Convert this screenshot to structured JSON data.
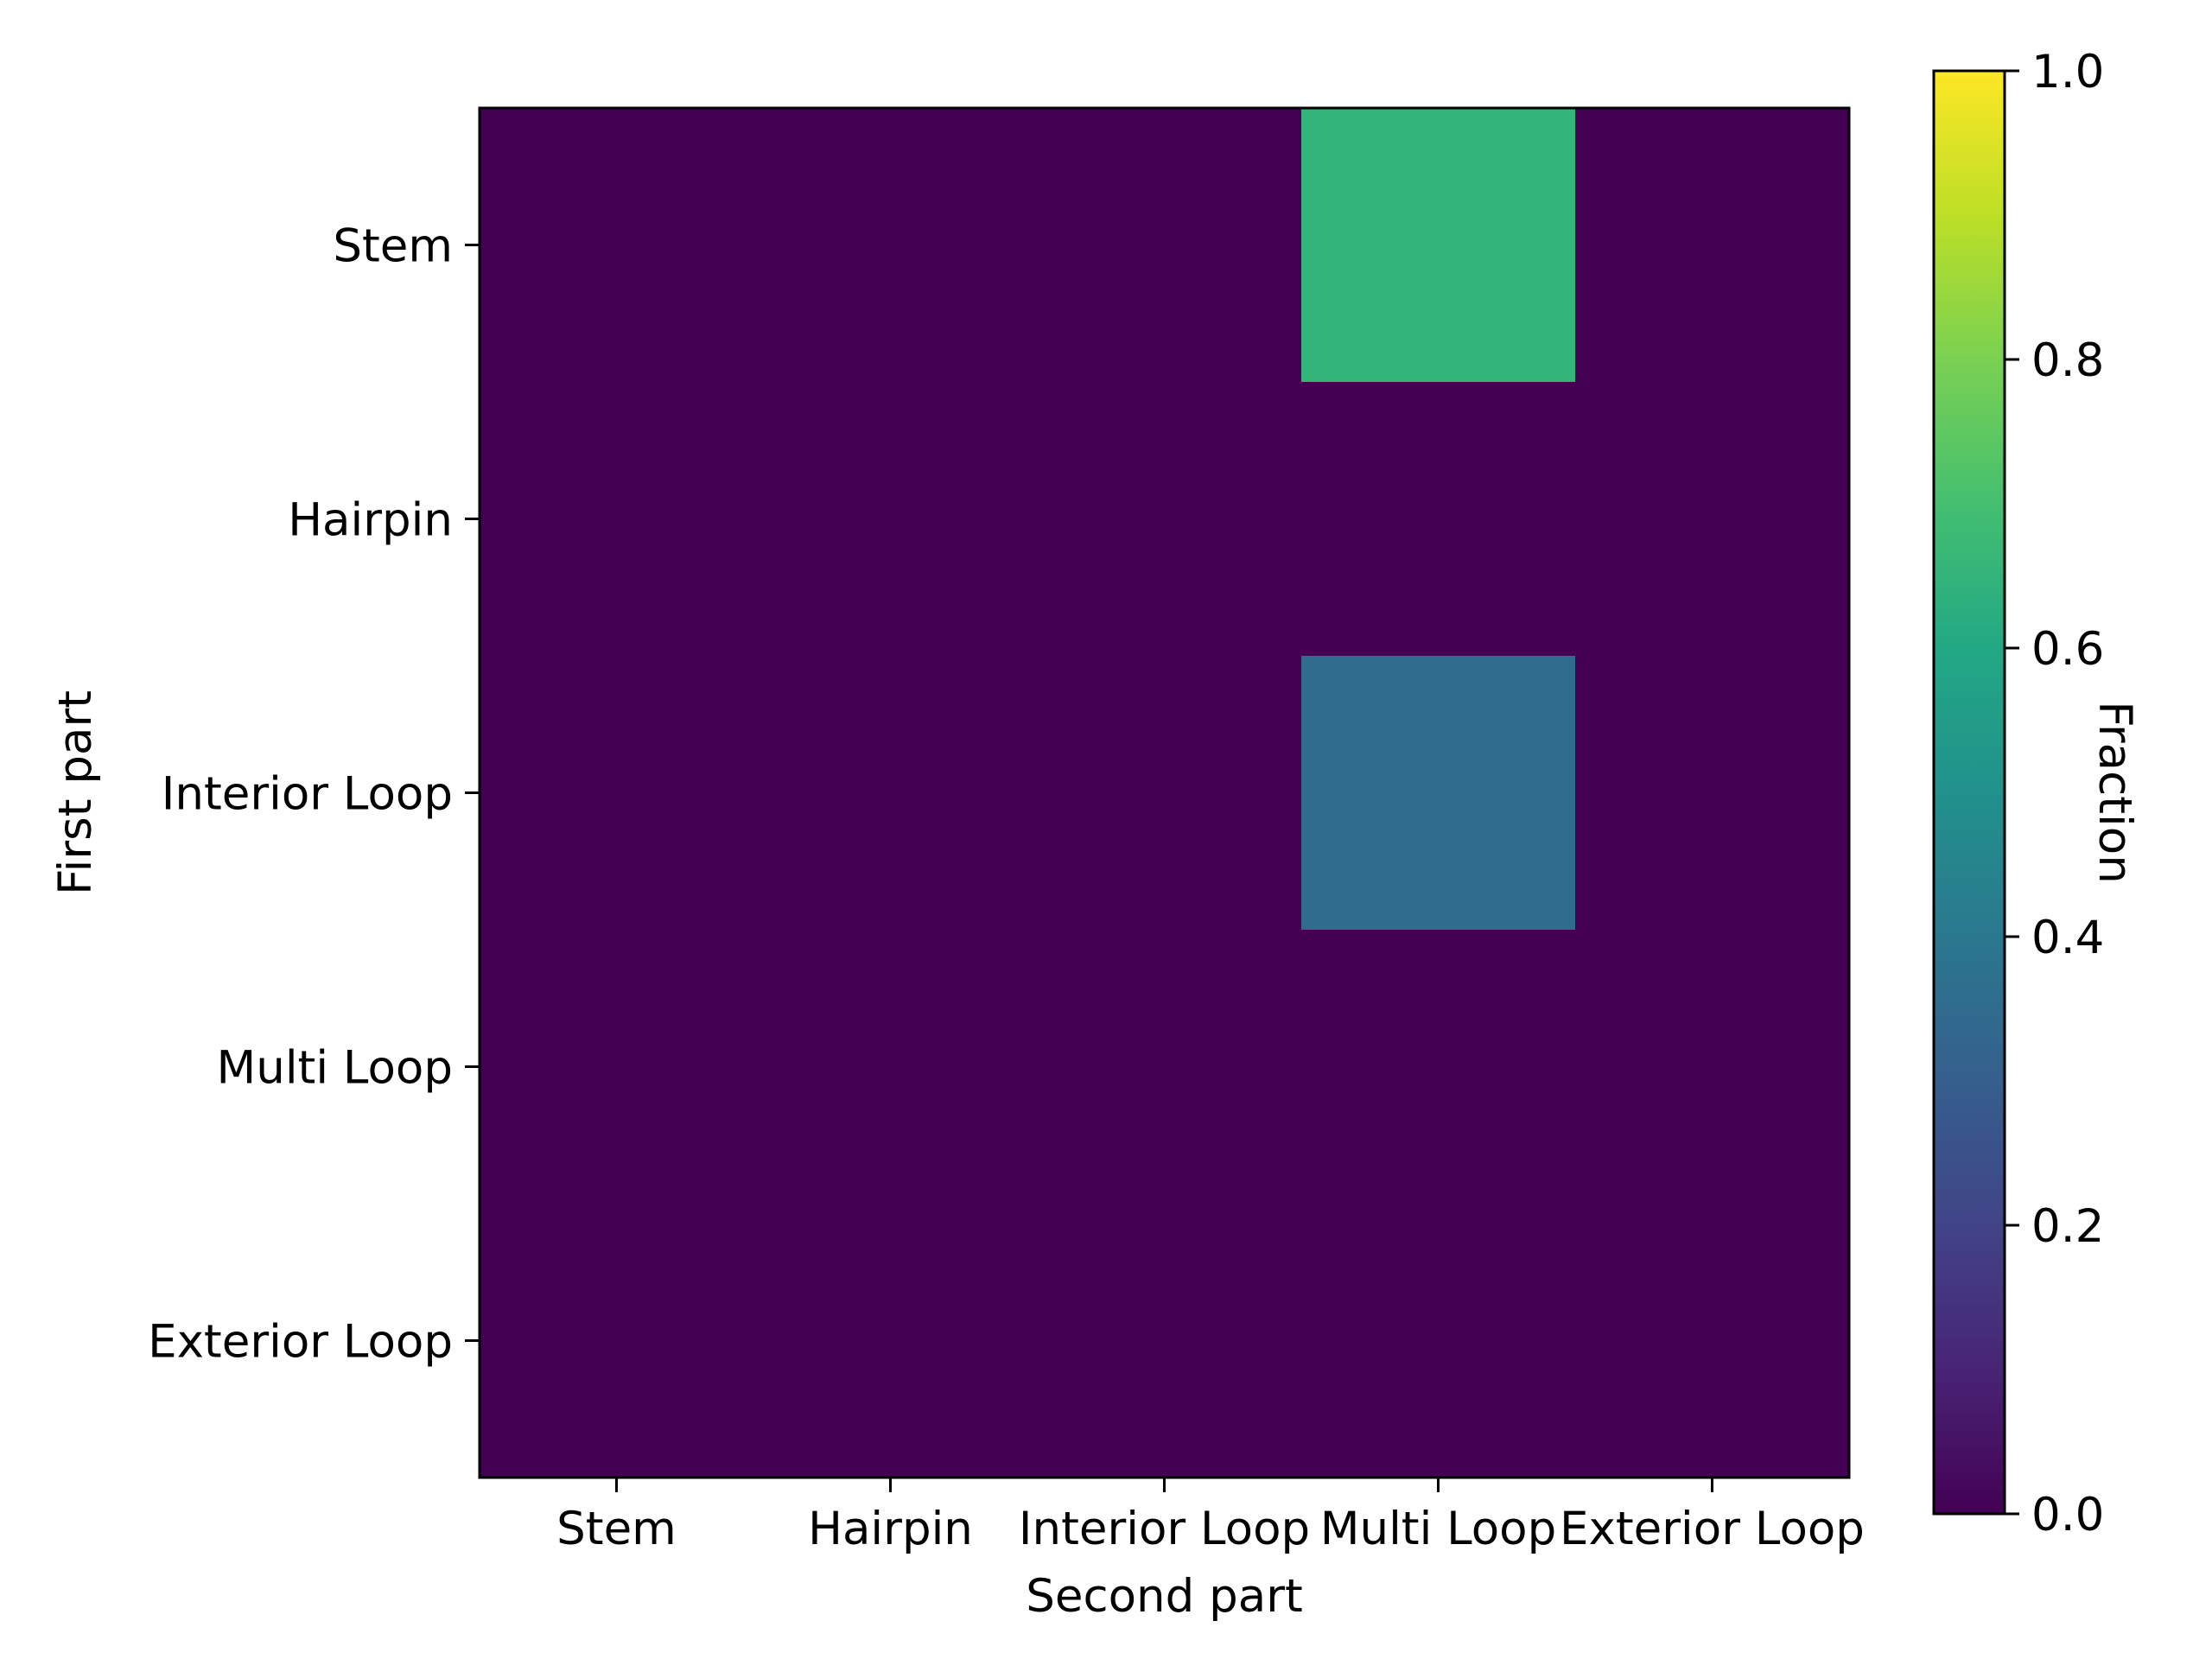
{
  "chart_data": {
    "type": "heatmap",
    "title": "",
    "xlabel": "Second part",
    "ylabel": "First part",
    "x_categories": [
      "Stem",
      "Hairpin",
      "Interior Loop",
      "Multi Loop",
      "Exterior Loop"
    ],
    "y_categories": [
      "Stem",
      "Hairpin",
      "Interior Loop",
      "Multi Loop",
      "Exterior Loop"
    ],
    "values": [
      [
        0,
        0,
        0,
        0.65,
        0
      ],
      [
        0,
        0,
        0,
        0,
        0
      ],
      [
        0,
        0,
        0,
        0.35,
        0
      ],
      [
        0,
        0,
        0,
        0,
        0
      ],
      [
        0,
        0,
        0,
        0,
        0
      ]
    ],
    "colormap": "viridis",
    "colorbar": {
      "label": "Fraction",
      "range": [
        0.0,
        1.0
      ],
      "ticks": [
        "0.0",
        "0.2",
        "0.4",
        "0.6",
        "0.8",
        "1.0"
      ]
    },
    "grid": false
  }
}
